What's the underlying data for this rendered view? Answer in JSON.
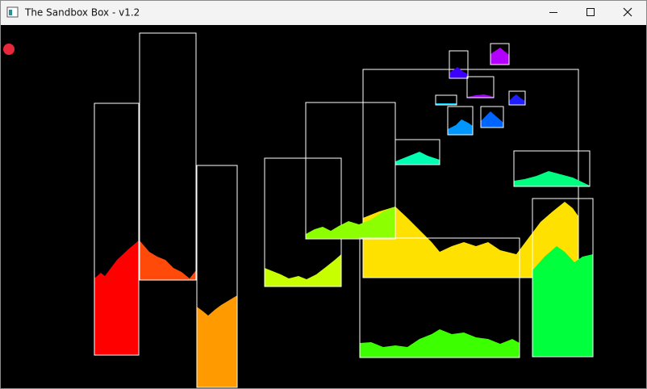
{
  "window": {
    "title": "The Sandbox Box - v1.2"
  }
}
